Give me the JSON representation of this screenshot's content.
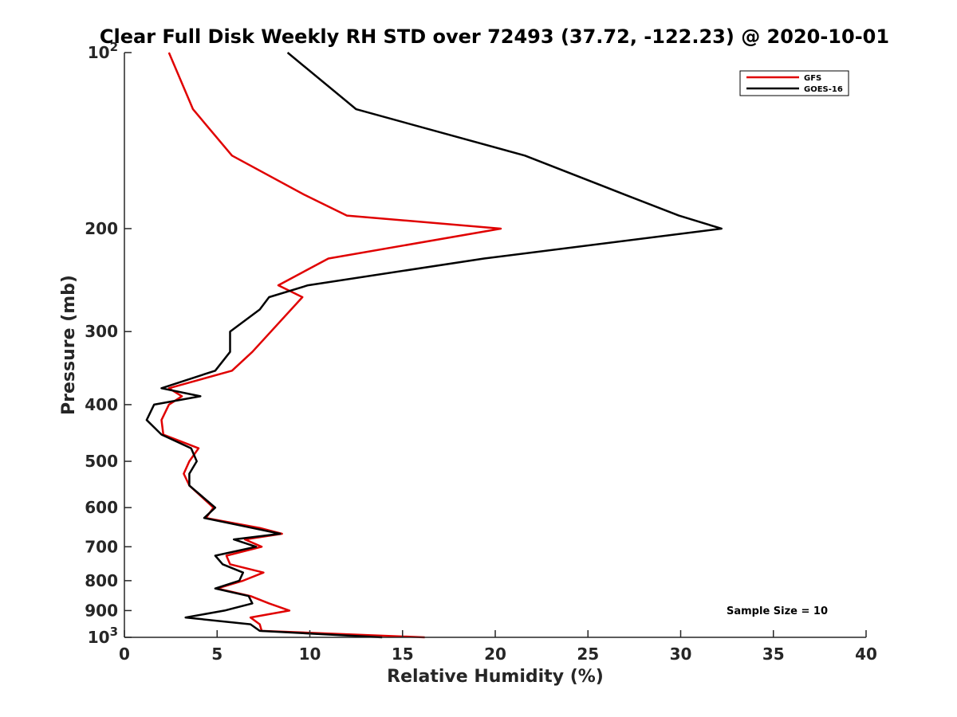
{
  "chart_data": {
    "type": "line",
    "title": "Clear Full Disk Weekly RH STD over 72493 (37.72, -122.23) @ 2020-10-01",
    "xlabel": "Relative Humidity (%)",
    "ylabel": "Pressure (mb)",
    "xlim": [
      0,
      40
    ],
    "ylim": [
      100,
      1000
    ],
    "yscale": "log",
    "y_reversed": true,
    "xticks": [
      0,
      5,
      10,
      15,
      20,
      25,
      30,
      35,
      40
    ],
    "xtick_labels": [
      "0",
      "5",
      "10",
      "15",
      "20",
      "25",
      "30",
      "35",
      "40"
    ],
    "yticks": [
      100,
      200,
      300,
      400,
      500,
      600,
      700,
      800,
      900,
      1000
    ],
    "ytick_labels": [
      {
        "base": "10",
        "exp": "2"
      },
      {
        "base": "200",
        "exp": ""
      },
      {
        "base": "300",
        "exp": ""
      },
      {
        "base": "400",
        "exp": ""
      },
      {
        "base": "500",
        "exp": ""
      },
      {
        "base": "600",
        "exp": ""
      },
      {
        "base": "700",
        "exp": ""
      },
      {
        "base": "800",
        "exp": ""
      },
      {
        "base": "900",
        "exp": ""
      },
      {
        "base": "10",
        "exp": "3"
      }
    ],
    "grid": false,
    "legend_position": "top-right",
    "annotation": "Sample Size = 10",
    "series": [
      {
        "name": "GFS",
        "color": "#e00000",
        "points": [
          [
            2.4,
            100
          ],
          [
            3.7,
            125
          ],
          [
            5.8,
            150
          ],
          [
            9.7,
            175
          ],
          [
            12.0,
            190
          ],
          [
            20.3,
            200
          ],
          [
            11.0,
            225
          ],
          [
            8.3,
            250
          ],
          [
            9.6,
            262
          ],
          [
            6.9,
            325
          ],
          [
            5.8,
            350
          ],
          [
            2.4,
            375
          ],
          [
            3.1,
            387
          ],
          [
            2.4,
            400
          ],
          [
            2.0,
            425
          ],
          [
            2.1,
            450
          ],
          [
            4.0,
            475
          ],
          [
            3.5,
            500
          ],
          [
            3.2,
            525
          ],
          [
            3.5,
            550
          ],
          [
            4.8,
            600
          ],
          [
            4.4,
            625
          ],
          [
            7.3,
            650
          ],
          [
            8.5,
            665
          ],
          [
            6.5,
            680
          ],
          [
            7.4,
            700
          ],
          [
            5.5,
            725
          ],
          [
            5.7,
            750
          ],
          [
            7.5,
            775
          ],
          [
            6.4,
            800
          ],
          [
            5.0,
            825
          ],
          [
            6.8,
            850
          ],
          [
            7.8,
            875
          ],
          [
            8.9,
            900
          ],
          [
            6.8,
            925
          ],
          [
            7.3,
            950
          ],
          [
            7.4,
            975
          ],
          [
            16.2,
            1000
          ]
        ]
      },
      {
        "name": "GOES-16",
        "color": "#000000",
        "points": [
          [
            8.8,
            100
          ],
          [
            12.5,
            125
          ],
          [
            21.6,
            150
          ],
          [
            27.0,
            175
          ],
          [
            29.9,
            190
          ],
          [
            32.2,
            200
          ],
          [
            19.4,
            225
          ],
          [
            9.9,
            250
          ],
          [
            7.8,
            262
          ],
          [
            7.3,
            275
          ],
          [
            5.7,
            300
          ],
          [
            5.7,
            325
          ],
          [
            4.9,
            350
          ],
          [
            2.0,
            375
          ],
          [
            4.1,
            387
          ],
          [
            1.6,
            400
          ],
          [
            1.2,
            425
          ],
          [
            2.0,
            450
          ],
          [
            3.6,
            475
          ],
          [
            3.9,
            500
          ],
          [
            3.5,
            525
          ],
          [
            3.5,
            550
          ],
          [
            4.9,
            600
          ],
          [
            4.3,
            625
          ],
          [
            6.9,
            650
          ],
          [
            8.4,
            665
          ],
          [
            5.9,
            680
          ],
          [
            7.1,
            700
          ],
          [
            4.9,
            725
          ],
          [
            5.3,
            750
          ],
          [
            6.4,
            775
          ],
          [
            6.2,
            800
          ],
          [
            4.9,
            825
          ],
          [
            6.7,
            850
          ],
          [
            6.9,
            875
          ],
          [
            5.4,
            900
          ],
          [
            3.3,
            925
          ],
          [
            6.8,
            950
          ],
          [
            7.3,
            975
          ],
          [
            13.9,
            1000
          ]
        ]
      }
    ]
  }
}
